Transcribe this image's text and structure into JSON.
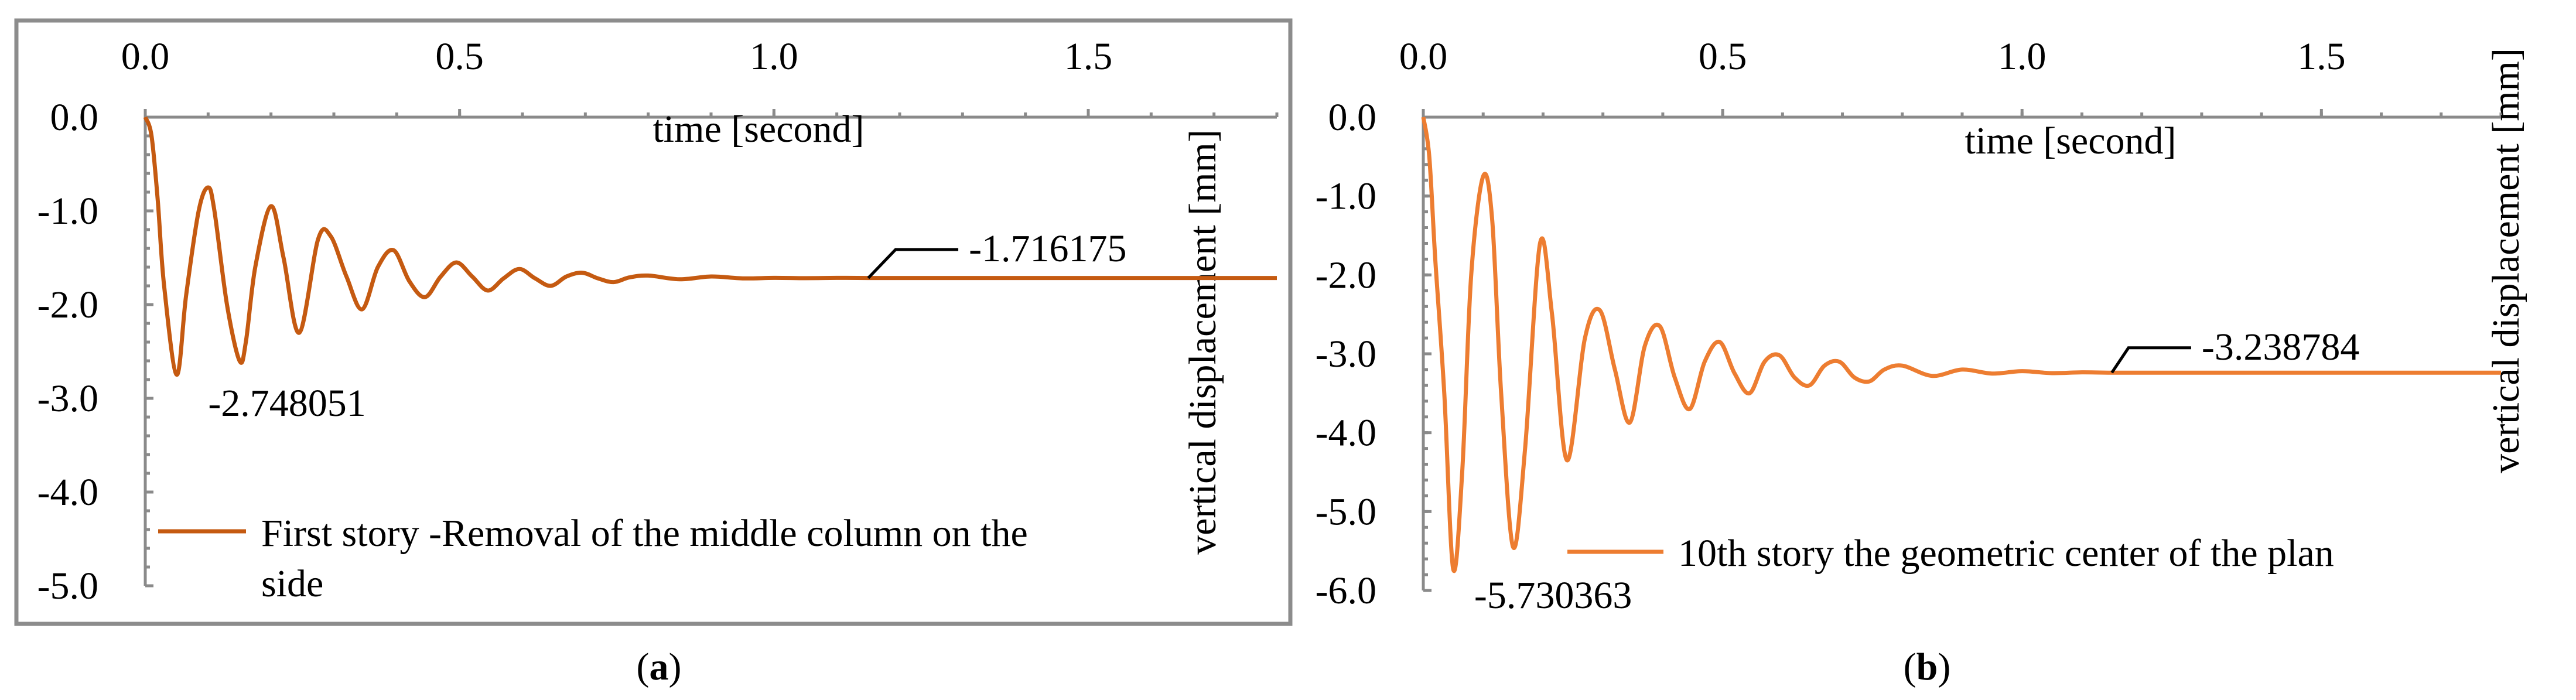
{
  "chart_data": [
    {
      "type": "line",
      "panel": "(a)",
      "caption_letter": "a",
      "xlabel": "time [second]",
      "ylabel": "vertical displacement [mm]",
      "xlim": [
        0,
        1.8
      ],
      "ylim": [
        -5.0,
        0.0
      ],
      "x_ticks": [
        0.0,
        0.5,
        1.0,
        1.5
      ],
      "x_tick_labels": [
        "0.0",
        "0.5",
        "1.0",
        "1.5"
      ],
      "y_ticks": [
        0.0,
        -1.0,
        -2.0,
        -3.0,
        -4.0,
        -5.0
      ],
      "y_tick_labels": [
        "0.0",
        "-1.0",
        "-2.0",
        "-3.0",
        "-4.0",
        "-5.0"
      ],
      "x_axis_position": "top",
      "grid": false,
      "legend": {
        "position": "bottom-left"
      },
      "series": [
        {
          "name": "First story -Removal of the middle column on the side",
          "color": "#C55A11",
          "x": [
            0.0,
            0.01,
            0.02,
            0.03,
            0.05,
            0.065,
            0.085,
            0.1,
            0.11,
            0.13,
            0.15,
            0.16,
            0.175,
            0.2,
            0.22,
            0.245,
            0.275,
            0.295,
            0.32,
            0.345,
            0.37,
            0.395,
            0.42,
            0.445,
            0.47,
            0.495,
            0.52,
            0.545,
            0.57,
            0.595,
            0.62,
            0.645,
            0.67,
            0.695,
            0.72,
            0.745,
            0.77,
            0.8,
            0.85,
            0.9,
            0.95,
            1.0,
            1.05,
            1.1,
            1.15,
            1.25,
            1.4,
            1.6,
            1.8
          ],
          "y": [
            0.0,
            -0.2,
            -0.9,
            -1.8,
            -2.748051,
            -1.9,
            -1.0,
            -0.75,
            -1.0,
            -2.0,
            -2.6,
            -2.4,
            -1.6,
            -0.95,
            -1.5,
            -2.3,
            -1.3,
            -1.27,
            -1.7,
            -2.05,
            -1.6,
            -1.42,
            -1.75,
            -1.92,
            -1.7,
            -1.55,
            -1.7,
            -1.85,
            -1.72,
            -1.62,
            -1.72,
            -1.8,
            -1.7,
            -1.66,
            -1.72,
            -1.76,
            -1.71,
            -1.69,
            -1.73,
            -1.7,
            -1.72,
            -1.715,
            -1.718,
            -1.715,
            -1.716,
            -1.716,
            -1.716,
            -1.716,
            -1.716
          ]
        }
      ],
      "annotations": [
        {
          "text": "-2.748051",
          "x": 0.05,
          "y": -2.748051,
          "label_x": 0.1,
          "label_y": -3.0
        },
        {
          "text": "-1.716175",
          "x": 1.15,
          "y": -1.716175,
          "label_x": 1.31,
          "label_y": -1.35
        }
      ]
    },
    {
      "type": "line",
      "panel": "(b)",
      "caption_letter": "b",
      "xlabel": "time [second]",
      "ylabel": "vertical displacement [mm]",
      "xlim": [
        0,
        1.8
      ],
      "ylim": [
        -6.0,
        0.0
      ],
      "x_ticks": [
        0.0,
        0.5,
        1.0,
        1.5
      ],
      "x_tick_labels": [
        "0.0",
        "0.5",
        "1.0",
        "1.5"
      ],
      "y_ticks": [
        0.0,
        -1.0,
        -2.0,
        -3.0,
        -4.0,
        -5.0,
        -6.0
      ],
      "y_tick_labels": [
        "0.0",
        "-1.0",
        "-2.0",
        "-3.0",
        "-4.0",
        "-5.0",
        "-6.0"
      ],
      "x_axis_position": "top",
      "grid": false,
      "legend": {
        "position": "bottom-right"
      },
      "series": [
        {
          "name": "10th story the geometric center of the plan",
          "color": "#ED7D31",
          "x": [
            0.0,
            0.01,
            0.02,
            0.035,
            0.05,
            0.065,
            0.08,
            0.1,
            0.115,
            0.13,
            0.15,
            0.17,
            0.195,
            0.215,
            0.24,
            0.27,
            0.295,
            0.32,
            0.345,
            0.37,
            0.395,
            0.42,
            0.445,
            0.47,
            0.495,
            0.52,
            0.545,
            0.57,
            0.595,
            0.62,
            0.645,
            0.67,
            0.695,
            0.72,
            0.745,
            0.77,
            0.8,
            0.85,
            0.9,
            0.95,
            1.0,
            1.05,
            1.1,
            1.15,
            1.25,
            1.4,
            1.6,
            1.8
          ],
          "y": [
            0.0,
            -0.5,
            -1.8,
            -3.5,
            -5.730363,
            -4.5,
            -2.0,
            -0.75,
            -1.3,
            -3.5,
            -5.45,
            -4.2,
            -1.6,
            -2.5,
            -4.35,
            -2.8,
            -2.45,
            -3.2,
            -3.87,
            -2.9,
            -2.65,
            -3.3,
            -3.7,
            -3.1,
            -2.85,
            -3.25,
            -3.5,
            -3.1,
            -3.02,
            -3.3,
            -3.4,
            -3.15,
            -3.1,
            -3.3,
            -3.35,
            -3.2,
            -3.15,
            -3.28,
            -3.2,
            -3.25,
            -3.22,
            -3.245,
            -3.235,
            -3.2388,
            -3.2388,
            -3.2388,
            -3.2388,
            -3.2388
          ]
        }
      ],
      "annotations": [
        {
          "text": "-5.730363",
          "x": 0.05,
          "y": -5.730363,
          "label_x": 0.085,
          "label_y": -6.0
        },
        {
          "text": "-3.238784",
          "x": 1.15,
          "y": -3.238784,
          "label_x": 1.3,
          "label_y": -2.85
        }
      ]
    }
  ]
}
